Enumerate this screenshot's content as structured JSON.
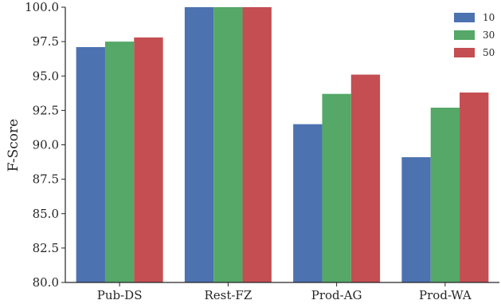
{
  "chart_data": {
    "type": "bar",
    "title": "",
    "xlabel": "",
    "ylabel": "F-Score",
    "ylim": [
      80.0,
      100.0
    ],
    "yticks": [
      "80.0",
      "82.5",
      "85.0",
      "87.5",
      "90.0",
      "92.5",
      "95.0",
      "97.5",
      "100.0"
    ],
    "categories": [
      "Pub-DS",
      "Rest-FZ",
      "Prod-AG",
      "Prod-WA"
    ],
    "series": [
      {
        "name": "10",
        "color": "#4c72b0",
        "values": [
          97.1,
          100.0,
          91.5,
          89.1
        ]
      },
      {
        "name": "30",
        "color": "#55a868",
        "values": [
          97.5,
          100.0,
          93.7,
          92.7
        ]
      },
      {
        "name": "50",
        "color": "#c44e52",
        "values": [
          97.8,
          100.0,
          95.1,
          93.8
        ]
      }
    ],
    "legend_position": "top-right",
    "grid": false
  }
}
